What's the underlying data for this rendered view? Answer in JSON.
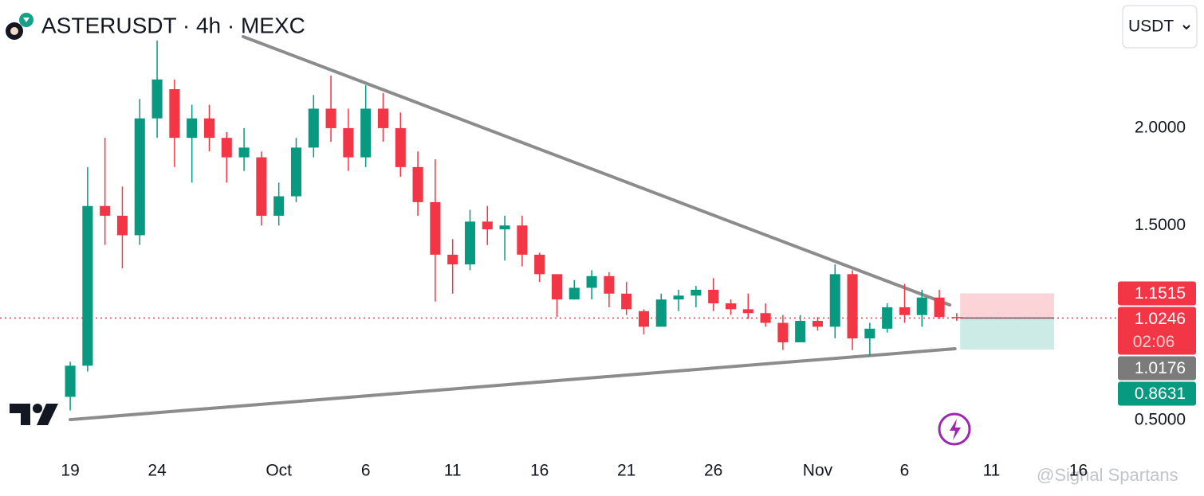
{
  "chart_data": {
    "type": "candlestick",
    "title": "ASTERUSDT · 4h · MEXC",
    "currency": "USDT",
    "watermark": "@Signal Spartans",
    "up_color": "#089981",
    "down_color": "#f23645",
    "xlim": [
      -4.04,
      60.18
    ],
    "ylim": [
      0.307,
      2.658
    ],
    "xticks": [
      {
        "value": 0,
        "label": "19"
      },
      {
        "value": 5,
        "label": "24"
      },
      {
        "value": 12,
        "label": "Oct"
      },
      {
        "value": 17,
        "label": "6"
      },
      {
        "value": 22,
        "label": "11"
      },
      {
        "value": 27,
        "label": "16"
      },
      {
        "value": 32,
        "label": "21"
      },
      {
        "value": 37,
        "label": "26"
      },
      {
        "value": 43,
        "label": "Nov"
      },
      {
        "value": 48,
        "label": "6"
      },
      {
        "value": 53,
        "label": "11"
      },
      {
        "value": 58,
        "label": "16"
      }
    ],
    "yticks": [
      {
        "value": 2,
        "label": "2.0000"
      },
      {
        "value": 1.5,
        "label": "1.5000"
      },
      {
        "value": 0.5,
        "label": "0.5000"
      }
    ],
    "x": [
      0,
      1,
      2,
      3,
      4,
      5,
      6,
      7,
      8,
      9,
      10,
      11,
      12,
      13,
      14,
      15,
      16,
      17,
      18,
      19,
      20,
      21,
      22,
      23,
      24,
      25,
      26,
      27,
      28,
      29,
      30,
      31,
      32,
      33,
      34,
      35,
      36,
      37,
      38,
      39,
      40,
      41,
      42,
      43,
      44,
      45,
      46,
      47,
      48,
      49,
      50,
      51
    ],
    "open": [
      0.62,
      0.78,
      1.6,
      1.55,
      1.45,
      2.05,
      2.2,
      1.95,
      2.05,
      1.95,
      1.85,
      1.85,
      1.55,
      1.65,
      1.9,
      2.1,
      2.0,
      1.85,
      2.1,
      2.0,
      1.8,
      1.62,
      1.35,
      1.3,
      1.52,
      1.48,
      1.5,
      1.35,
      1.25,
      1.12,
      1.18,
      1.24,
      1.15,
      1.06,
      0.98,
      1.12,
      1.14,
      1.17,
      1.1,
      1.07,
      1.05,
      1.0,
      0.9,
      1.01,
      0.98,
      1.25,
      0.92,
      0.97,
      1.08,
      1.04,
      1.13,
      1.03
    ],
    "high": [
      0.8,
      1.8,
      1.95,
      1.7,
      2.15,
      2.45,
      2.25,
      2.12,
      2.12,
      1.98,
      2.0,
      1.88,
      1.72,
      1.95,
      2.17,
      2.27,
      2.1,
      2.22,
      2.18,
      2.08,
      1.88,
      1.84,
      1.43,
      1.58,
      1.6,
      1.55,
      1.55,
      1.36,
      1.25,
      1.22,
      1.27,
      1.26,
      1.21,
      1.07,
      1.15,
      1.17,
      1.19,
      1.23,
      1.12,
      1.15,
      1.1,
      1.04,
      1.04,
      1.03,
      1.3,
      1.27,
      1.0,
      1.1,
      1.2,
      1.17,
      1.17,
      1.05
    ],
    "low": [
      0.55,
      0.75,
      1.4,
      1.28,
      1.4,
      1.95,
      1.8,
      1.72,
      1.88,
      1.72,
      1.78,
      1.5,
      1.5,
      1.62,
      1.85,
      1.93,
      1.78,
      1.8,
      1.93,
      1.75,
      1.55,
      1.11,
      1.15,
      1.27,
      1.4,
      1.32,
      1.29,
      1.21,
      1.03,
      1.12,
      1.12,
      1.08,
      1.04,
      0.94,
      0.98,
      1.06,
      1.08,
      1.06,
      1.04,
      1.02,
      0.98,
      0.86,
      0.9,
      0.96,
      0.92,
      0.86,
      0.83,
      0.95,
      1.0,
      0.98,
      1.02,
      1.01
    ],
    "close": [
      0.78,
      1.6,
      1.55,
      1.45,
      2.05,
      2.25,
      1.95,
      2.05,
      1.95,
      1.85,
      1.9,
      1.55,
      1.65,
      1.9,
      2.1,
      2.0,
      1.85,
      2.1,
      2.0,
      1.8,
      1.62,
      1.35,
      1.3,
      1.52,
      1.48,
      1.5,
      1.35,
      1.25,
      1.12,
      1.18,
      1.24,
      1.15,
      1.07,
      0.98,
      1.12,
      1.14,
      1.17,
      1.1,
      1.07,
      1.05,
      1.0,
      0.9,
      1.01,
      0.98,
      1.25,
      0.92,
      0.97,
      1.08,
      1.04,
      1.13,
      1.03,
      1.0246
    ],
    "trendlines": [
      {
        "color": "#8c8c8c",
        "x": [
          9.95,
          50.6
        ],
        "y": [
          2.47,
          1.092
        ]
      },
      {
        "color": "#8c8c8c",
        "x": [
          0,
          50.9
        ],
        "y": [
          0.503,
          0.867
        ]
      }
    ],
    "last_price": 1.0246,
    "position": {
      "x": [
        51.2,
        56.6
      ],
      "stop": 1.1515,
      "entry": 1.0246,
      "target": 0.8631,
      "stop_color": "#fcd4d7",
      "target_color": "#cdebe6"
    },
    "price_labels": [
      {
        "value": 1.1515,
        "color": "#f23645"
      },
      {
        "value": 1.0246,
        "color": "#f23645",
        "countdown": "02:06"
      },
      {
        "value": 1.0176,
        "color": "#7b7b7b"
      },
      {
        "value": 0.8631,
        "color": "#089981"
      }
    ]
  }
}
